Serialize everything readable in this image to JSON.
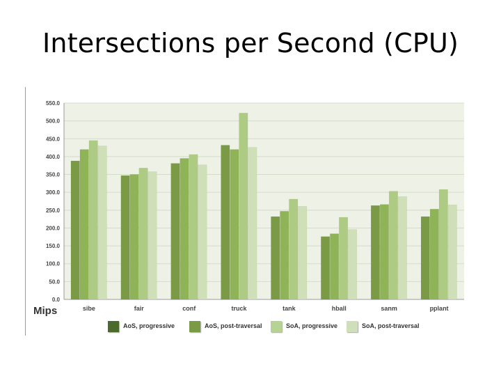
{
  "slide": {
    "title": "Intersections per Second (CPU)"
  },
  "chart_data": {
    "type": "bar",
    "title": "",
    "xlabel": "",
    "ylabel": "Mips",
    "ylim": [
      0,
      550
    ],
    "yticks": [
      "0.0",
      "50.0",
      "100.0",
      "150.0",
      "200.0",
      "250.0",
      "300.0",
      "350.0",
      "400.0",
      "450.0",
      "500.0",
      "550.0"
    ],
    "grid": true,
    "legend_position": "bottom",
    "categories": [
      "sibe",
      "fair",
      "conf",
      "truck",
      "tank",
      "hball",
      "sanm",
      "pplant"
    ],
    "series": [
      {
        "name": "AoS, progressive",
        "color": "#7a9a45",
        "values": [
          388,
          347,
          381,
          432,
          232,
          176,
          263,
          232
        ]
      },
      {
        "name": "AoS, post-traversal",
        "color": "#8fb357",
        "values": [
          420,
          350,
          395,
          420,
          247,
          184,
          266,
          253
        ]
      },
      {
        "name": "SoA, progressive",
        "color": "#aecb84",
        "values": [
          445,
          368,
          406,
          522,
          281,
          230,
          303,
          308
        ]
      },
      {
        "name": "SoA, post-traversal",
        "color": "#cfdfb7",
        "values": [
          430,
          358,
          377,
          426,
          261,
          196,
          288,
          265
        ]
      }
    ],
    "legend_swatch_colors": [
      "#4c6a2c",
      "#7a9a45",
      "#b7d394",
      "#cfdfb7"
    ],
    "plot_background": "#eef2e6"
  }
}
